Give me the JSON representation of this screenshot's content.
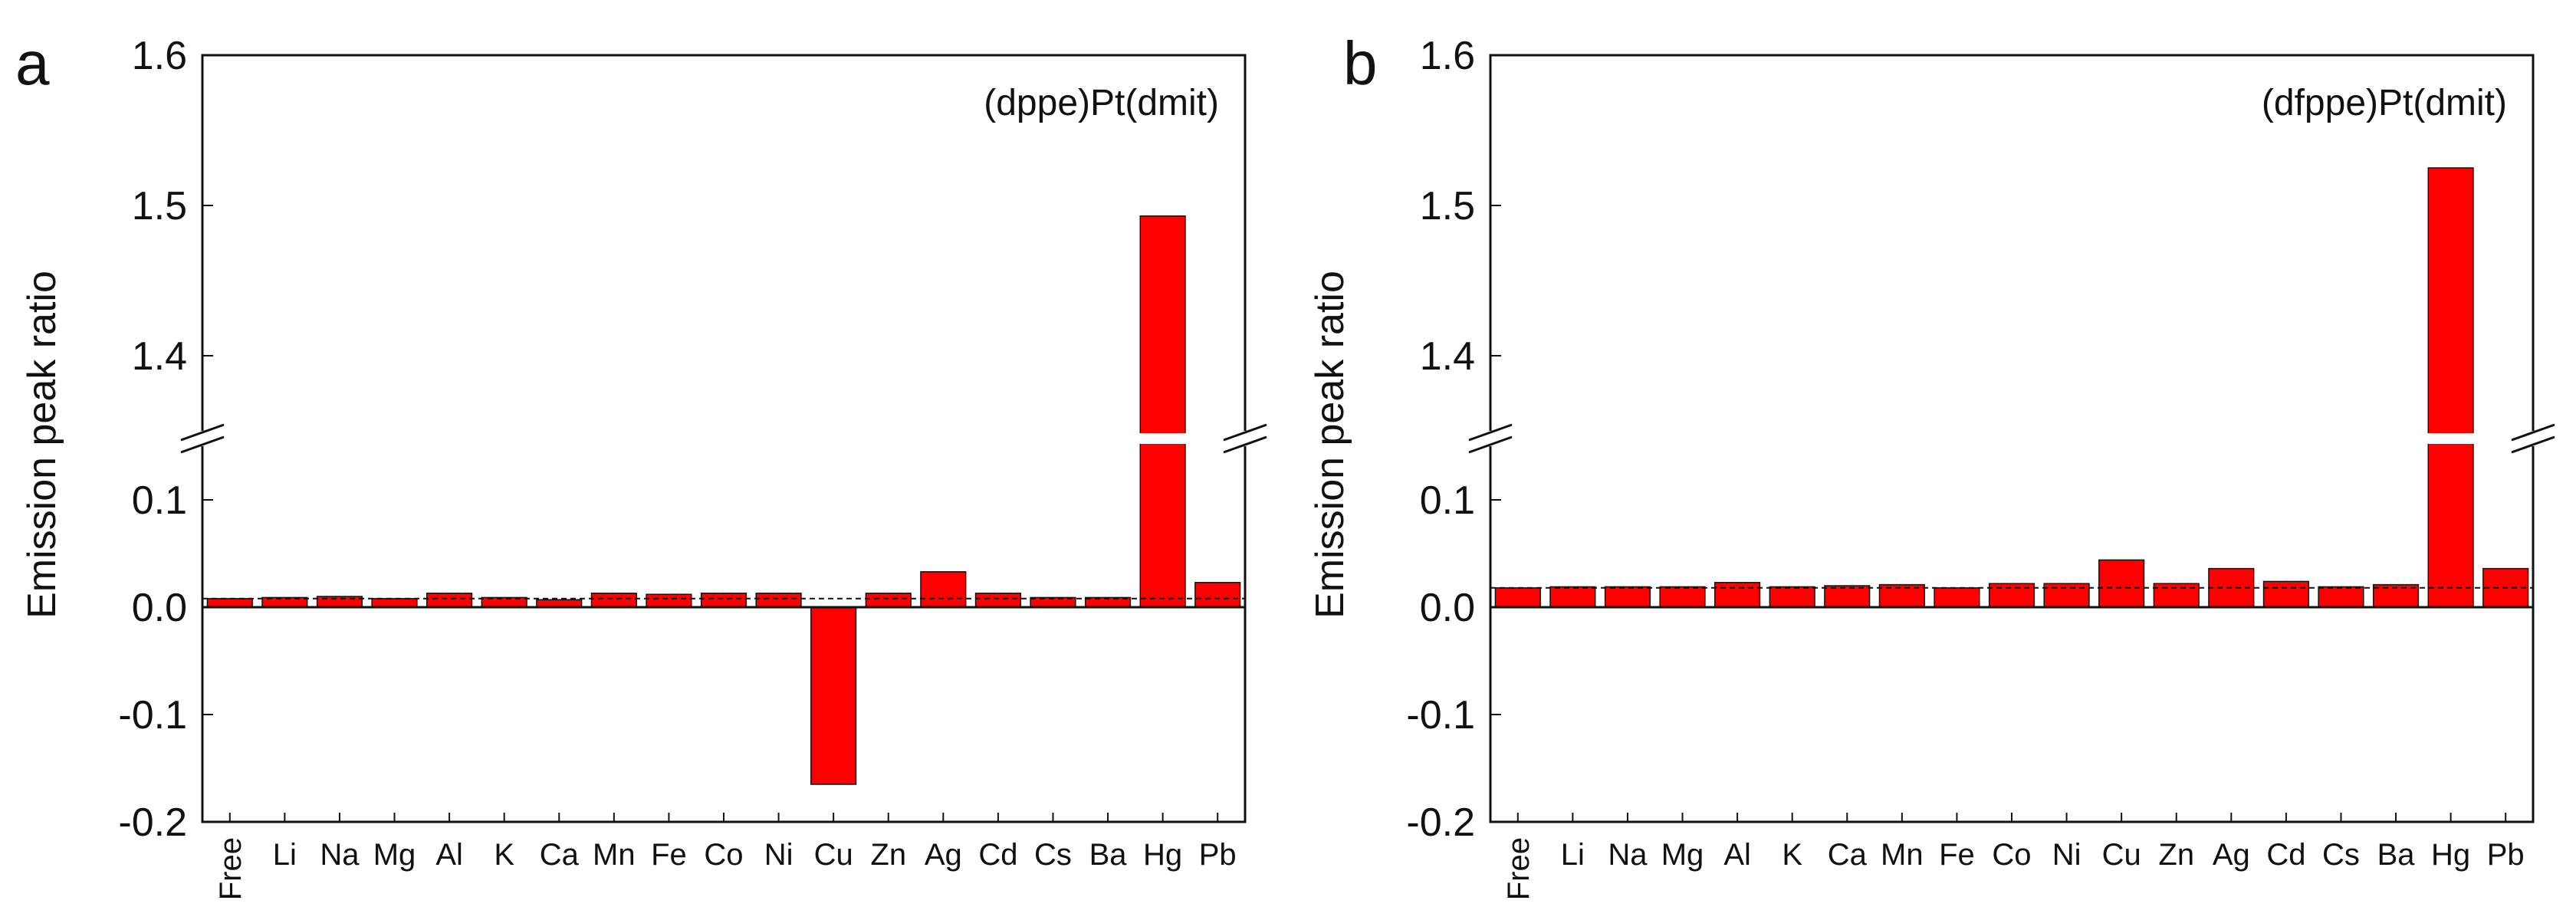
{
  "chart_data": [
    {
      "type": "bar",
      "panel": "a",
      "title": "(dppe)Pt(dmit)",
      "ylabel": "Emission peak ratio",
      "xlabel": "",
      "broken_y_axis": true,
      "ylim_lower": [
        -0.2,
        0.15
      ],
      "ylim_upper": [
        1.35,
        1.6
      ],
      "yticks_lower": [
        "0.1",
        "0.0",
        "-0.1",
        "-0.2"
      ],
      "yticks_upper": [
        "1.6",
        "1.5",
        "1.4"
      ],
      "reference_line": 0.008,
      "bar_color": "#ff0000",
      "categories": [
        "Free",
        "Li",
        "Na",
        "Mg",
        "Al",
        "K",
        "Ca",
        "Mn",
        "Fe",
        "Co",
        "Ni",
        "Cu",
        "Zn",
        "Ag",
        "Cd",
        "Cs",
        "Ba",
        "Hg",
        "Pb"
      ],
      "values": [
        0.008,
        0.009,
        0.01,
        0.008,
        0.013,
        0.009,
        0.007,
        0.013,
        0.012,
        0.013,
        0.013,
        -0.165,
        0.013,
        0.033,
        0.013,
        0.009,
        0.009,
        1.493,
        0.023
      ]
    },
    {
      "type": "bar",
      "panel": "b",
      "title": "(dfppe)Pt(dmit)",
      "ylabel": "Emission peak ratio",
      "xlabel": "",
      "broken_y_axis": true,
      "ylim_lower": [
        -0.2,
        0.15
      ],
      "ylim_upper": [
        1.35,
        1.6
      ],
      "yticks_lower": [
        "0.1",
        "0.0",
        "-0.1",
        "-0.2"
      ],
      "yticks_upper": [
        "1.6",
        "1.5",
        "1.4"
      ],
      "reference_line": 0.018,
      "bar_color": "#ff0000",
      "categories": [
        "Free",
        "Li",
        "Na",
        "Mg",
        "Al",
        "K",
        "Ca",
        "Mn",
        "Fe",
        "Co",
        "Ni",
        "Cu",
        "Zn",
        "Ag",
        "Cd",
        "Cs",
        "Ba",
        "Hg",
        "Pb"
      ],
      "values": [
        0.018,
        0.019,
        0.019,
        0.019,
        0.023,
        0.019,
        0.02,
        0.021,
        0.018,
        0.022,
        0.022,
        0.044,
        0.022,
        0.036,
        0.024,
        0.019,
        0.021,
        1.525,
        0.036
      ]
    }
  ]
}
